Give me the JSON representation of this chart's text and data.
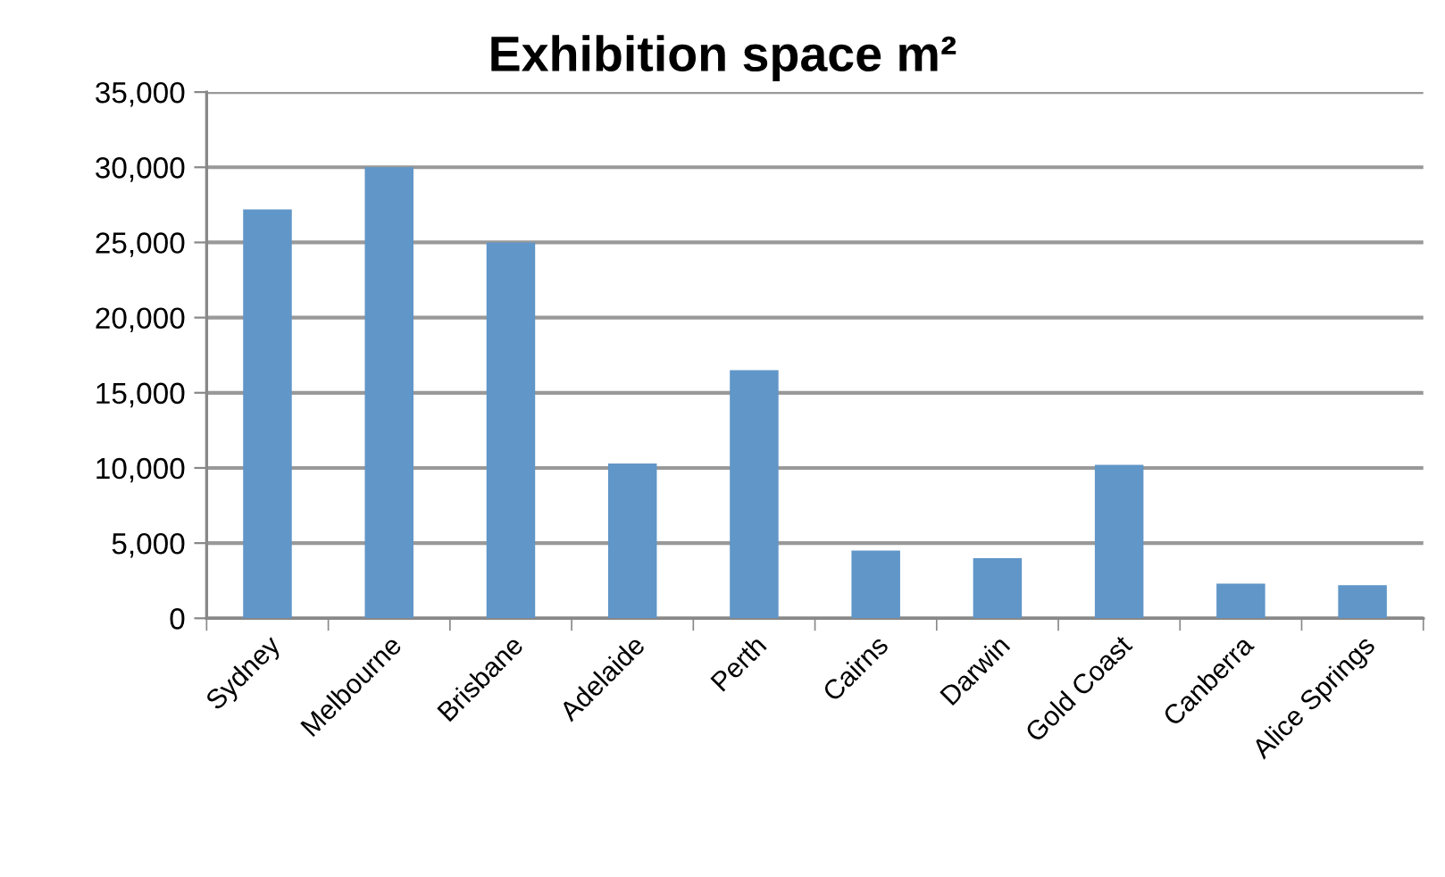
{
  "chart_data": {
    "type": "bar",
    "title": "Exhibition space m²",
    "categories": [
      "Sydney",
      "Melbourne",
      "Brisbane",
      "Adelaide",
      "Perth",
      "Cairns",
      "Darwin",
      "Gold Coast",
      "Canberra",
      "Alice Springs"
    ],
    "values": [
      27200,
      30000,
      25000,
      10300,
      16500,
      4500,
      4000,
      10200,
      2300,
      2200
    ],
    "color": "#6096c8",
    "ylim": [
      0,
      35000
    ],
    "yticks": [
      {
        "value": 0,
        "label": "0"
      },
      {
        "value": 5000,
        "label": "5,000"
      },
      {
        "value": 10000,
        "label": "10,000"
      },
      {
        "value": 15000,
        "label": "15,000"
      },
      {
        "value": 20000,
        "label": "20,000"
      },
      {
        "value": 25000,
        "label": "25,000"
      },
      {
        "value": 30000,
        "label": "30,000"
      },
      {
        "value": 35000,
        "label": "35,000"
      }
    ],
    "grid": "y",
    "legend": false
  }
}
